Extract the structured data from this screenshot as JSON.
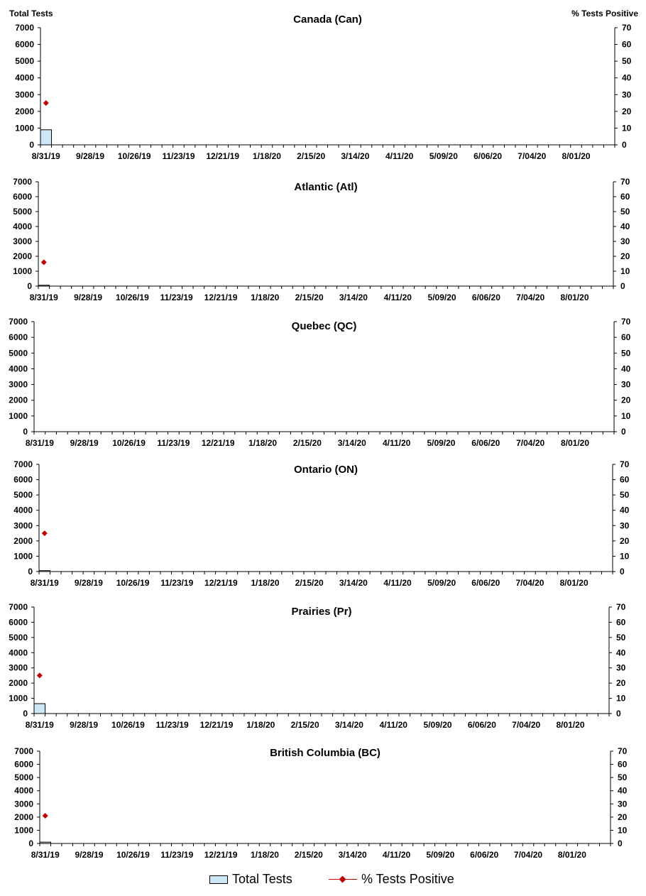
{
  "left_axis_title": "Total Tests",
  "right_axis_title": "% Tests Positive",
  "colors": {
    "bar_fill": "#cce8f6",
    "bar_stroke": "#000000",
    "marker": "#c00000"
  },
  "legend": {
    "bars": "Total Tests",
    "line": "% Tests Positive"
  },
  "chart_data": [
    {
      "type": "bar",
      "title": "Canada (Can)",
      "categories": [
        "8/31/19",
        "9/28/19",
        "10/26/19",
        "11/23/19",
        "12/21/19",
        "1/18/20",
        "2/15/20",
        "3/14/20",
        "4/11/20",
        "5/09/20",
        "6/06/20",
        "7/04/20",
        "8/01/20"
      ],
      "ylim": [
        0,
        7000
      ],
      "y2lim": [
        0,
        70
      ],
      "yticks": [
        "0",
        "1000",
        "2000",
        "3000",
        "4000",
        "5000",
        "6000",
        "7000"
      ],
      "y2ticks": [
        "0",
        "10",
        "20",
        "30",
        "40",
        "50",
        "60",
        "70"
      ],
      "series": [
        {
          "name": "Total Tests",
          "axis": "left",
          "x": [
            "8/31/19"
          ],
          "values": [
            900
          ]
        },
        {
          "name": "% Tests Positive",
          "axis": "right",
          "x": [
            "8/31/19"
          ],
          "values": [
            25
          ]
        }
      ]
    },
    {
      "type": "bar",
      "title": "Atlantic (Atl)",
      "categories": [
        "8/31/19",
        "9/28/19",
        "10/26/19",
        "11/23/19",
        "12/21/19",
        "1/18/20",
        "2/15/20",
        "3/14/20",
        "4/11/20",
        "5/09/20",
        "6/06/20",
        "7/04/20",
        "8/01/20"
      ],
      "ylim": [
        0,
        7000
      ],
      "y2lim": [
        0,
        70
      ],
      "yticks": [
        "0",
        "1000",
        "2000",
        "3000",
        "4000",
        "5000",
        "6000",
        "7000"
      ],
      "y2ticks": [
        "0",
        "10",
        "20",
        "30",
        "40",
        "50",
        "60",
        "70"
      ],
      "series": [
        {
          "name": "Total Tests",
          "axis": "left",
          "x": [
            "8/31/19"
          ],
          "values": [
            60
          ]
        },
        {
          "name": "% Tests Positive",
          "axis": "right",
          "x": [
            "8/31/19"
          ],
          "values": [
            16
          ]
        }
      ]
    },
    {
      "type": "bar",
      "title": "Quebec (QC)",
      "categories": [
        "8/31/19",
        "9/28/19",
        "10/26/19",
        "11/23/19",
        "12/21/19",
        "1/18/20",
        "2/15/20",
        "3/14/20",
        "4/11/20",
        "5/09/20",
        "6/06/20",
        "7/04/20",
        "8/01/20"
      ],
      "ylim": [
        0,
        7000
      ],
      "y2lim": [
        0,
        70
      ],
      "yticks": [
        "0",
        "1000",
        "2000",
        "3000",
        "4000",
        "5000",
        "6000",
        "7000"
      ],
      "y2ticks": [
        "0",
        "10",
        "20",
        "30",
        "40",
        "50",
        "60",
        "70"
      ],
      "series": [
        {
          "name": "Total Tests",
          "axis": "left",
          "x": [],
          "values": []
        },
        {
          "name": "% Tests Positive",
          "axis": "right",
          "x": [],
          "values": []
        }
      ]
    },
    {
      "type": "bar",
      "title": "Ontario (ON)",
      "categories": [
        "8/31/19",
        "9/28/19",
        "10/26/19",
        "11/23/19",
        "12/21/19",
        "1/18/20",
        "2/15/20",
        "3/14/20",
        "4/11/20",
        "5/09/20",
        "6/06/20",
        "7/04/20",
        "8/01/20"
      ],
      "ylim": [
        0,
        7000
      ],
      "y2lim": [
        0,
        70
      ],
      "yticks": [
        "0",
        "1000",
        "2000",
        "3000",
        "4000",
        "5000",
        "6000",
        "7000"
      ],
      "y2ticks": [
        "0",
        "10",
        "20",
        "30",
        "40",
        "50",
        "60",
        "70"
      ],
      "series": [
        {
          "name": "Total Tests",
          "axis": "left",
          "x": [
            "8/31/19"
          ],
          "values": [
            60
          ]
        },
        {
          "name": "% Tests Positive",
          "axis": "right",
          "x": [
            "8/31/19"
          ],
          "values": [
            25
          ]
        }
      ]
    },
    {
      "type": "bar",
      "title": "Prairies (Pr)",
      "categories": [
        "8/31/19",
        "9/28/19",
        "10/26/19",
        "11/23/19",
        "12/21/19",
        "1/18/20",
        "2/15/20",
        "3/14/20",
        "4/11/20",
        "5/09/20",
        "6/06/20",
        "7/04/20",
        "8/01/20"
      ],
      "ylim": [
        0,
        7000
      ],
      "y2lim": [
        0,
        70
      ],
      "yticks": [
        "0",
        "1000",
        "2000",
        "3000",
        "4000",
        "5000",
        "6000",
        "7000"
      ],
      "y2ticks": [
        "0",
        "10",
        "20",
        "30",
        "40",
        "50",
        "60",
        "70"
      ],
      "series": [
        {
          "name": "Total Tests",
          "axis": "left",
          "x": [
            "8/31/19"
          ],
          "values": [
            650
          ]
        },
        {
          "name": "% Tests Positive",
          "axis": "right",
          "x": [
            "8/31/19"
          ],
          "values": [
            25
          ]
        }
      ]
    },
    {
      "type": "bar",
      "title": "British Columbia (BC)",
      "categories": [
        "8/31/19",
        "9/28/19",
        "10/26/19",
        "11/23/19",
        "12/21/19",
        "1/18/20",
        "2/15/20",
        "3/14/20",
        "4/11/20",
        "5/09/20",
        "6/06/20",
        "7/04/20",
        "8/01/20"
      ],
      "ylim": [
        0,
        7000
      ],
      "y2lim": [
        0,
        70
      ],
      "yticks": [
        "0",
        "1000",
        "2000",
        "3000",
        "4000",
        "5000",
        "6000",
        "7000"
      ],
      "y2ticks": [
        "0",
        "10",
        "20",
        "30",
        "40",
        "50",
        "60",
        "70"
      ],
      "series": [
        {
          "name": "Total Tests",
          "axis": "left",
          "x": [
            "8/31/19"
          ],
          "values": [
            100
          ]
        },
        {
          "name": "% Tests Positive",
          "axis": "right",
          "x": [
            "8/31/19"
          ],
          "values": [
            21
          ]
        }
      ]
    }
  ]
}
